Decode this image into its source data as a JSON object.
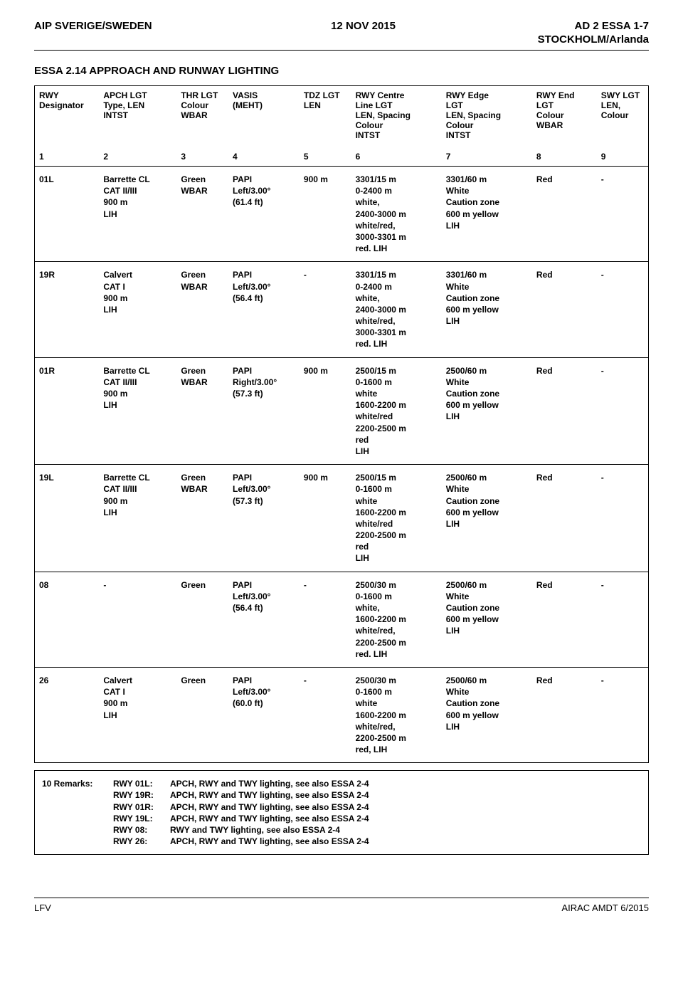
{
  "header": {
    "left": "AIP SVERIGE/SWEDEN",
    "center": "12 NOV 2015",
    "right": "AD 2 ESSA 1-7",
    "sub": "STOCKHOLM/Arlanda"
  },
  "section": {
    "title": "ESSA 2.14  APPROACH AND RUNWAY LIGHTING"
  },
  "table": {
    "columns": [
      "RWY\nDesignator",
      "APCH LGT\nType, LEN\nINTST",
      "THR LGT\nColour\nWBAR",
      "VASIS\n(MEHT)",
      "TDZ LGT\nLEN",
      "RWY Centre\nLine LGT\nLEN, Spacing\nColour\nINTST",
      "RWY Edge\nLGT\nLEN, Spacing\nColour\nINTST",
      "RWY End\nLGT\nColour\nWBAR",
      "SWY LGT\nLEN,\nColour"
    ],
    "numbers": [
      "1",
      "2",
      "3",
      "4",
      "5",
      "6",
      "7",
      "8",
      "9"
    ],
    "rows": [
      {
        "c1": "01L",
        "c2": "Barrette CL\nCAT II/III\n900 m\nLIH",
        "c3": "Green\nWBAR",
        "c4": "PAPI\nLeft/3.00°\n(61.4 ft)",
        "c5": "900 m",
        "c6": "3301/15 m\n0-2400 m\nwhite,\n2400-3000 m\nwhite/red,\n3000-3301 m\nred. LIH",
        "c7": "3301/60 m\nWhite\nCaution zone\n600 m yellow\nLIH",
        "c8": "Red",
        "c9": "-"
      },
      {
        "c1": "19R",
        "c2": "Calvert\nCAT I\n900 m\nLIH",
        "c3": "Green\nWBAR",
        "c4": "PAPI\nLeft/3.00°\n(56.4 ft)",
        "c5": "-",
        "c6": "3301/15 m\n0-2400 m\nwhite,\n2400-3000 m\nwhite/red,\n3000-3301 m\nred. LIH",
        "c7": "3301/60 m\nWhite\nCaution zone\n600 m yellow\nLIH",
        "c8": "Red",
        "c9": "-"
      },
      {
        "c1": "01R",
        "c2": "Barrette CL\nCAT II/III\n900 m\nLIH",
        "c3": "Green\nWBAR",
        "c4": "PAPI\nRight/3.00°\n(57.3 ft)",
        "c5": "900 m",
        "c6": "2500/15 m\n0-1600 m\nwhite\n1600-2200 m\nwhite/red\n2200-2500 m\nred\nLIH",
        "c7": "2500/60 m\nWhite\nCaution zone\n600 m yellow\nLIH",
        "c8": "Red",
        "c9": "-"
      },
      {
        "c1": "19L",
        "c2": "Barrette CL\nCAT II/III\n900 m\nLIH",
        "c3": "Green\nWBAR",
        "c4": "PAPI\nLeft/3.00°\n(57.3 ft)",
        "c5": "900 m",
        "c6": "2500/15 m\n0-1600 m\nwhite\n1600-2200 m\nwhite/red\n2200-2500 m\nred\nLIH",
        "c7": "2500/60 m\nWhite\nCaution zone\n600 m yellow\nLIH",
        "c8": "Red",
        "c9": "-"
      },
      {
        "c1": "08",
        "c2": "-",
        "c3": "Green",
        "c4": "PAPI\nLeft/3.00°\n(56.4 ft)",
        "c5": "-",
        "c6": "2500/30 m\n0-1600 m\nwhite,\n1600-2200 m\nwhite/red,\n2200-2500 m\nred. LIH",
        "c7": "2500/60 m\nWhite\nCaution zone\n600 m yellow\nLIH",
        "c8": "Red",
        "c9": "-"
      },
      {
        "c1": "26",
        "c2": "Calvert\nCAT I\n900 m\nLIH",
        "c3": "Green",
        "c4": "PAPI\nLeft/3.00°\n(60.0 ft)",
        "c5": "-",
        "c6": "2500/30 m\n0-1600 m\nwhite\n1600-2200 m\nwhite/red,\n2200-2500 m\nred, LIH",
        "c7": "2500/60 m\nWhite\nCaution zone\n600 m yellow\nLIH",
        "c8": "Red",
        "c9": "-"
      }
    ]
  },
  "remarks": {
    "label": "10 Remarks:",
    "lines": [
      {
        "rwy": "RWY 01L:",
        "txt": "APCH, RWY and TWY lighting, see also ESSA 2-4"
      },
      {
        "rwy": "RWY 19R:",
        "txt": "APCH, RWY and TWY lighting, see also ESSA 2-4"
      },
      {
        "rwy": "RWY 01R:",
        "txt": "APCH, RWY and TWY lighting, see also ESSA 2-4"
      },
      {
        "rwy": "RWY 19L:",
        "txt": "APCH, RWY and TWY lighting, see also ESSA 2-4"
      },
      {
        "rwy": "RWY 08:",
        "txt": "RWY and TWY lighting, see also ESSA 2-4"
      },
      {
        "rwy": "RWY 26:",
        "txt": "APCH, RWY and TWY lighting, see also ESSA 2-4"
      }
    ]
  },
  "footer": {
    "left": "LFV",
    "right": "AIRAC AMDT 6/2015"
  }
}
